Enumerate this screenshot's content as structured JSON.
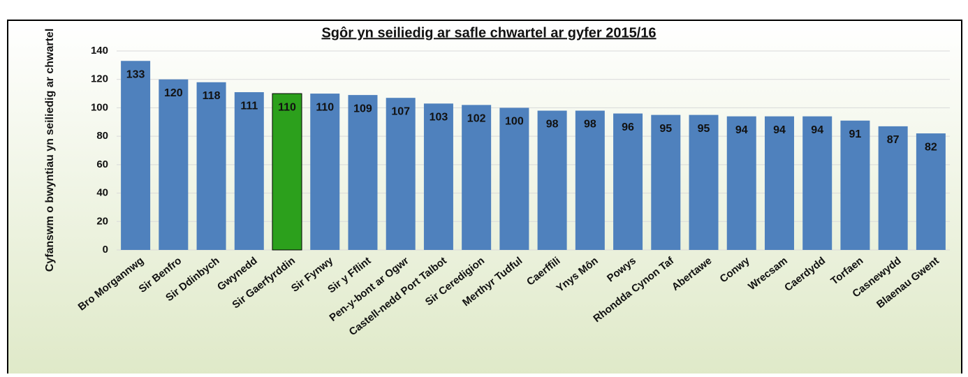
{
  "chart_data": {
    "type": "bar",
    "title": "Sgôr yn seiliedig ar safle chwartel ar gyfer 2015/16",
    "y_label": "Cyfanswm o bwyntiau yn seiliedig ar chwartel",
    "categories": [
      "Bro Morgannwg",
      "Sir Benfro",
      "Sir Ddinbych",
      "Gwynedd",
      "Sir Gaerfyrddin",
      "Sir Fynwy",
      "Sir y Fflint",
      "Pen-y-bont ar Ogwr",
      "Castell-nedd Port Talbot",
      "Sir Ceredigion",
      "Merthyr Tudful",
      "Caerffili",
      "Ynys Môn",
      "Powys",
      "Rhondda Cynon Taf",
      "Abertawe",
      "Conwy",
      "Wrecsam",
      "Caerdydd",
      "Torfaen",
      "Casnewydd",
      "Blaenau Gwent"
    ],
    "values": [
      133,
      120,
      118,
      111,
      110,
      110,
      109,
      107,
      103,
      102,
      100,
      98,
      98,
      96,
      95,
      95,
      94,
      94,
      94,
      91,
      87,
      82
    ],
    "colors": [
      "#4f81bd",
      "#4f81bd",
      "#4f81bd",
      "#4f81bd",
      "#2ca01c",
      "#4f81bd",
      "#4f81bd",
      "#4f81bd",
      "#4f81bd",
      "#4f81bd",
      "#4f81bd",
      "#4f81bd",
      "#4f81bd",
      "#4f81bd",
      "#4f81bd",
      "#4f81bd",
      "#4f81bd",
      "#4f81bd",
      "#4f81bd",
      "#4f81bd",
      "#4f81bd",
      "#4f81bd"
    ],
    "ylim": [
      0,
      140
    ],
    "yticks": [
      0,
      20,
      40,
      60,
      80,
      100,
      120,
      140
    ],
    "grid": true
  }
}
